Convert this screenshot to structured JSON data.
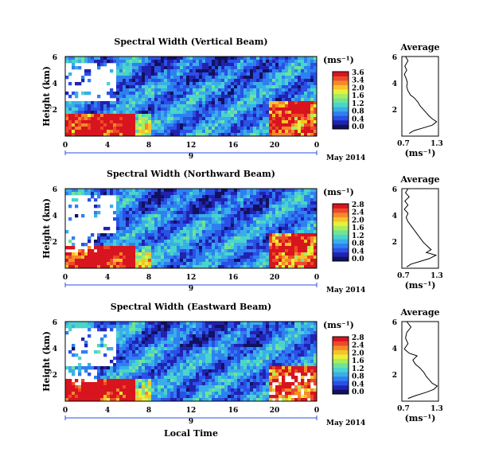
{
  "colorbar_colors": [
    "#10125e",
    "#2222b0",
    "#2a50e6",
    "#2e80f0",
    "#3aaee8",
    "#4ad4cc",
    "#6ee39a",
    "#a8ee5c",
    "#e8f03a",
    "#f8c22a",
    "#f5892a",
    "#ec4a28",
    "#d8141e"
  ],
  "chart_data": [
    {
      "type": "heatmap",
      "title": "Spectral Width (Vertical Beam)",
      "ylabel": "Height (km)",
      "xlabel": "",
      "date_label": "May 2014",
      "day_marker": "9",
      "unit": "(ms⁻¹)",
      "x_ticks": [
        "0",
        "4",
        "8",
        "12",
        "16",
        "20",
        "0"
      ],
      "y_ticks": [
        "6",
        "4",
        "2"
      ],
      "colorbar_ticks": [
        "3.6",
        "3.4",
        "2.0",
        "1.6",
        "1.2",
        "0.8",
        "0.4",
        "0.0"
      ],
      "profile": {
        "title": "Average",
        "xlabel": "(ms⁻¹)",
        "x_ticks": [
          "0.7",
          "1.3"
        ],
        "y_ticks": [
          "6",
          "4",
          "2"
        ],
        "xlim": [
          0.7,
          1.3
        ],
        "ylim": [
          0.2,
          6
        ],
        "points": [
          [
            0.76,
            6.0
          ],
          [
            0.8,
            5.7
          ],
          [
            0.75,
            5.3
          ],
          [
            0.78,
            5.0
          ],
          [
            0.74,
            4.7
          ],
          [
            0.77,
            4.4
          ],
          [
            0.79,
            4.1
          ],
          [
            0.78,
            3.8
          ],
          [
            0.8,
            3.5
          ],
          [
            0.84,
            3.2
          ],
          [
            0.9,
            3.0
          ],
          [
            0.96,
            2.7
          ],
          [
            1.0,
            2.4
          ],
          [
            1.06,
            2.1
          ],
          [
            1.1,
            1.9
          ],
          [
            1.14,
            1.7
          ],
          [
            1.2,
            1.45
          ],
          [
            1.27,
            1.25
          ],
          [
            1.2,
            1.0
          ],
          [
            1.05,
            0.8
          ],
          [
            0.9,
            0.6
          ],
          [
            0.82,
            0.4
          ]
        ]
      }
    },
    {
      "type": "heatmap",
      "title": "Spectral Width (Northward Beam)",
      "ylabel": "Height (km)",
      "xlabel": "",
      "date_label": "May 2014",
      "day_marker": "9",
      "unit": "(ms⁻¹)",
      "x_ticks": [
        "0",
        "4",
        "8",
        "12",
        "16",
        "20",
        "0"
      ],
      "y_ticks": [
        "6",
        "4",
        "2"
      ],
      "colorbar_ticks": [
        "2.8",
        "2.4",
        "2.0",
        "1.6",
        "1.2",
        "0.8",
        "0.4",
        "0.0"
      ],
      "profile": {
        "title": "Average",
        "xlabel": "(ms⁻¹)",
        "x_ticks": [
          "0.7",
          "1.3"
        ],
        "y_ticks": [
          "6",
          "4",
          "2"
        ],
        "xlim": [
          0.7,
          1.3
        ],
        "ylim": [
          0.2,
          6
        ],
        "points": [
          [
            0.8,
            6.0
          ],
          [
            0.76,
            5.7
          ],
          [
            0.82,
            5.4
          ],
          [
            0.75,
            5.1
          ],
          [
            0.8,
            4.8
          ],
          [
            0.74,
            4.5
          ],
          [
            0.8,
            4.2
          ],
          [
            0.77,
            3.9
          ],
          [
            0.8,
            3.6
          ],
          [
            0.85,
            3.3
          ],
          [
            0.9,
            3.0
          ],
          [
            0.95,
            2.7
          ],
          [
            1.0,
            2.4
          ],
          [
            1.05,
            2.1
          ],
          [
            1.12,
            1.8
          ],
          [
            1.18,
            1.55
          ],
          [
            1.1,
            1.35
          ],
          [
            1.26,
            1.15
          ],
          [
            1.15,
            0.9
          ],
          [
            1.0,
            0.7
          ],
          [
            0.85,
            0.5
          ],
          [
            0.78,
            0.3
          ]
        ]
      }
    },
    {
      "type": "heatmap",
      "title": "Spectral Width (Eastward Beam)",
      "ylabel": "Height (km)",
      "xlabel": "Local Time",
      "date_label": "May 2014",
      "day_marker": "9",
      "unit": "(ms⁻¹)",
      "x_ticks": [
        "0",
        "4",
        "8",
        "12",
        "16",
        "20",
        "0"
      ],
      "y_ticks": [
        "6",
        "4",
        "2"
      ],
      "colorbar_ticks": [
        "2.8",
        "2.4",
        "2.0",
        "1.6",
        "1.2",
        "0.8",
        "0.4",
        "0.0"
      ],
      "profile": {
        "title": "Average",
        "xlabel": "(ms⁻¹)",
        "x_ticks": [
          "0.7",
          "1.3"
        ],
        "y_ticks": [
          "6",
          "4",
          "2"
        ],
        "xlim": [
          0.7,
          1.3
        ],
        "ylim": [
          0.2,
          6
        ],
        "points": [
          [
            0.78,
            6.0
          ],
          [
            0.85,
            5.6
          ],
          [
            0.78,
            5.2
          ],
          [
            0.76,
            4.8
          ],
          [
            0.8,
            4.4
          ],
          [
            0.74,
            4.0
          ],
          [
            0.82,
            3.7
          ],
          [
            0.95,
            3.5
          ],
          [
            0.88,
            3.2
          ],
          [
            0.92,
            2.9
          ],
          [
            1.0,
            2.6
          ],
          [
            1.06,
            2.3
          ],
          [
            1.1,
            2.0
          ],
          [
            1.15,
            1.75
          ],
          [
            1.2,
            1.5
          ],
          [
            1.28,
            1.3
          ],
          [
            1.22,
            1.05
          ],
          [
            1.1,
            0.85
          ],
          [
            0.92,
            0.6
          ],
          [
            0.8,
            0.4
          ]
        ]
      }
    }
  ]
}
